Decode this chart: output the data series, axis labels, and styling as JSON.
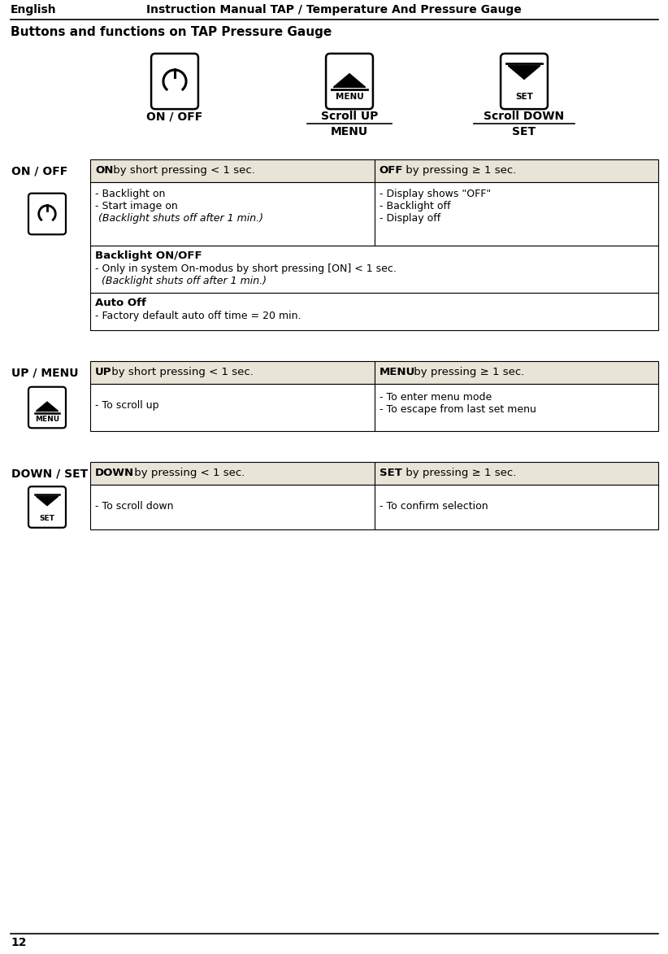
{
  "header_left": "English",
  "header_right": "Instruction Manual TAP / Temperature And Pressure Gauge",
  "page_number": "12",
  "section_title": "Buttons and functions on TAP Pressure Gauge",
  "bg_color": "#ffffff",
  "table_header_bg": "#e8e4d8",
  "on_off_table": {
    "row_label": "ON / OFF",
    "col1_header_bold": "ON",
    "col1_header_rest": " by short pressing < 1 sec.",
    "col2_header_bold": "OFF",
    "col2_header_rest": " by pressing ≥ 1 sec.",
    "col1_body": "- Backlight on\n- Start image on\n (Backlight shuts off after 1 min.)",
    "col2_body": "- Display shows \"OFF\"\n- Backlight off\n- Display off",
    "full_row1_title": "Backlight ON/OFF",
    "full_row1_line1": "- Only in system On-modus by short pressing [ON] < 1 sec.",
    "full_row1_line2": "  (Backlight shuts off after 1 min.)",
    "full_row2_title": "Auto Off",
    "full_row2_body": "- Factory default auto off time = 20 min."
  },
  "up_menu_table": {
    "row_label": "UP / MENU",
    "col1_header_bold": "UP",
    "col1_header_rest": " by short pressing < 1 sec.",
    "col2_header_bold": "MENU",
    "col2_header_rest": " by pressing ≥ 1 sec.",
    "col1_body": "- To scroll up",
    "col2_body_line1": "- To enter menu mode",
    "col2_body_line2": "- To escape from last set menu"
  },
  "down_set_table": {
    "row_label": "DOWN / SET",
    "col1_header_bold": "DOWN",
    "col1_header_rest": " by pressing < 1 sec.",
    "col2_header_bold": "SET",
    "col2_header_rest": " by pressing ≥ 1 sec.",
    "col1_body": "- To scroll down",
    "col2_body": "- To confirm selection"
  },
  "btn_on_off_label": "ON / OFF",
  "btn_scroll_up_1": "Scroll UP",
  "btn_scroll_up_2": "MENU",
  "btn_scroll_down_1": "Scroll DOWN",
  "btn_scroll_down_2": "SET"
}
